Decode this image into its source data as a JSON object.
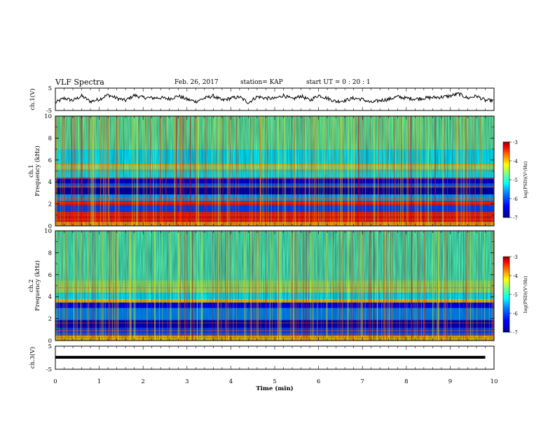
{
  "header": {
    "title": "VLF Spectra",
    "date": "Feb. 26, 2017",
    "station": "station= KAP",
    "start": "start  UT =   0 : 20 : 1"
  },
  "chart_data": [
    {
      "type": "line",
      "ylabel": "ch.1(V)",
      "ylim": [
        -5,
        5
      ],
      "yticks": [
        "5",
        "-5"
      ],
      "series_description": "noisy waveform oscillating roughly between -2 and +2 V",
      "x": [
        0,
        0.2,
        0.4,
        0.6,
        0.8,
        1.0,
        1.2,
        1.4,
        1.6,
        1.8,
        2.0,
        2.2,
        2.4,
        2.6,
        2.8,
        3.0,
        3.2,
        3.4,
        3.6,
        3.8,
        4.0,
        4.2,
        4.4,
        4.6,
        4.8,
        5.0,
        5.2,
        5.4,
        5.6,
        5.8,
        6.0,
        6.2,
        6.4,
        6.6,
        6.8,
        7.0,
        7.2,
        7.4,
        7.6,
        7.8,
        8.0,
        8.2,
        8.4,
        8.6,
        8.8,
        9.0,
        9.2,
        9.4,
        9.6,
        9.8
      ],
      "y": [
        -1.5,
        0.5,
        -0.5,
        1.5,
        -1,
        0,
        2,
        0.5,
        -0.5,
        1.8,
        0.8,
        0.6,
        0.7,
        0.2,
        1.5,
        0,
        -1,
        0.5,
        1.5,
        -0.5,
        0.5,
        1,
        -1.5,
        1.2,
        0.5,
        0.3,
        1.8,
        0,
        1.5,
        -0.5,
        1.8,
        0.5,
        -1,
        -0.5,
        0.5,
        0,
        -1.5,
        -0.5,
        0,
        1.2,
        0.5,
        0.2,
        0.5,
        0.8,
        1,
        1.5,
        2.5,
        0.5,
        1.5,
        -0.5
      ]
    },
    {
      "type": "heatmap",
      "ylabel": "ch.1\nFrequency (kHz)",
      "ylim": [
        0,
        10
      ],
      "yticks": [
        "0",
        "2",
        "4",
        "6",
        "8",
        "10"
      ],
      "colorbar": {
        "label": "log(PSD)(V²/Hz)",
        "ticks": [
          "-3",
          "-4",
          "-5",
          "-6",
          "-7"
        ],
        "range": [
          -7,
          -3
        ]
      },
      "bands_khz": [
        {
          "y0": 0.0,
          "y1": 0.4,
          "level": -4.2
        },
        {
          "y0": 0.4,
          "y1": 1.3,
          "level": -3.6
        },
        {
          "y0": 1.3,
          "y1": 1.9,
          "level": -6.2
        },
        {
          "y0": 1.9,
          "y1": 2.3,
          "level": -3.6
        },
        {
          "y0": 2.3,
          "y1": 2.9,
          "level": -5.8
        },
        {
          "y0": 2.9,
          "y1": 3.5,
          "level": -6.9
        },
        {
          "y0": 3.5,
          "y1": 3.9,
          "level": -6.1
        },
        {
          "y0": 3.9,
          "y1": 4.4,
          "level": -6.6
        },
        {
          "y0": 4.4,
          "y1": 5.2,
          "level": -5.4
        },
        {
          "y0": 5.2,
          "y1": 5.7,
          "level": -4.9
        },
        {
          "y0": 5.7,
          "y1": 7.0,
          "level": -5.5
        },
        {
          "y0": 7.0,
          "y1": 10.0,
          "level": -5.1
        }
      ]
    },
    {
      "type": "heatmap",
      "ylabel": "ch.2\nFrequency (kHz)",
      "ylim": [
        0,
        10
      ],
      "yticks": [
        "0",
        "2",
        "4",
        "6",
        "8",
        "10"
      ],
      "colorbar": {
        "label": "log(PSD)(V²/Hz)",
        "ticks": [
          "-3",
          "-4",
          "-5",
          "-6",
          "-7"
        ],
        "range": [
          -7,
          -3
        ]
      },
      "bands_khz": [
        {
          "y0": 0.0,
          "y1": 0.5,
          "level": -4.3
        },
        {
          "y0": 0.5,
          "y1": 1.2,
          "level": -6.2
        },
        {
          "y0": 1.2,
          "y1": 1.9,
          "level": -6.8
        },
        {
          "y0": 1.9,
          "y1": 3.0,
          "level": -5.9
        },
        {
          "y0": 3.0,
          "y1": 3.5,
          "level": -6.5
        },
        {
          "y0": 3.5,
          "y1": 3.8,
          "level": -4.4
        },
        {
          "y0": 3.8,
          "y1": 4.4,
          "level": -5.5
        },
        {
          "y0": 4.4,
          "y1": 5.5,
          "level": -4.9
        },
        {
          "y0": 5.5,
          "y1": 10.0,
          "level": -5.2
        }
      ]
    },
    {
      "type": "line",
      "ylabel": "ch.3(V)",
      "ylim": [
        -5,
        5
      ],
      "yticks": [
        "5",
        "-5"
      ],
      "x": [
        0,
        9.8
      ],
      "y": [
        0.2,
        0.2
      ]
    }
  ],
  "xaxis": {
    "label": "Time (min)",
    "ticks": [
      "0",
      "1",
      "2",
      "3",
      "4",
      "5",
      "6",
      "7",
      "8",
      "9",
      "10"
    ],
    "xlim": [
      0,
      10
    ]
  },
  "colors": {
    "colormap": [
      "#00008f",
      "#0000ff",
      "#007fff",
      "#00ffff",
      "#7fff7f",
      "#ffff00",
      "#ff7f00",
      "#ff0000",
      "#8f0000"
    ]
  }
}
